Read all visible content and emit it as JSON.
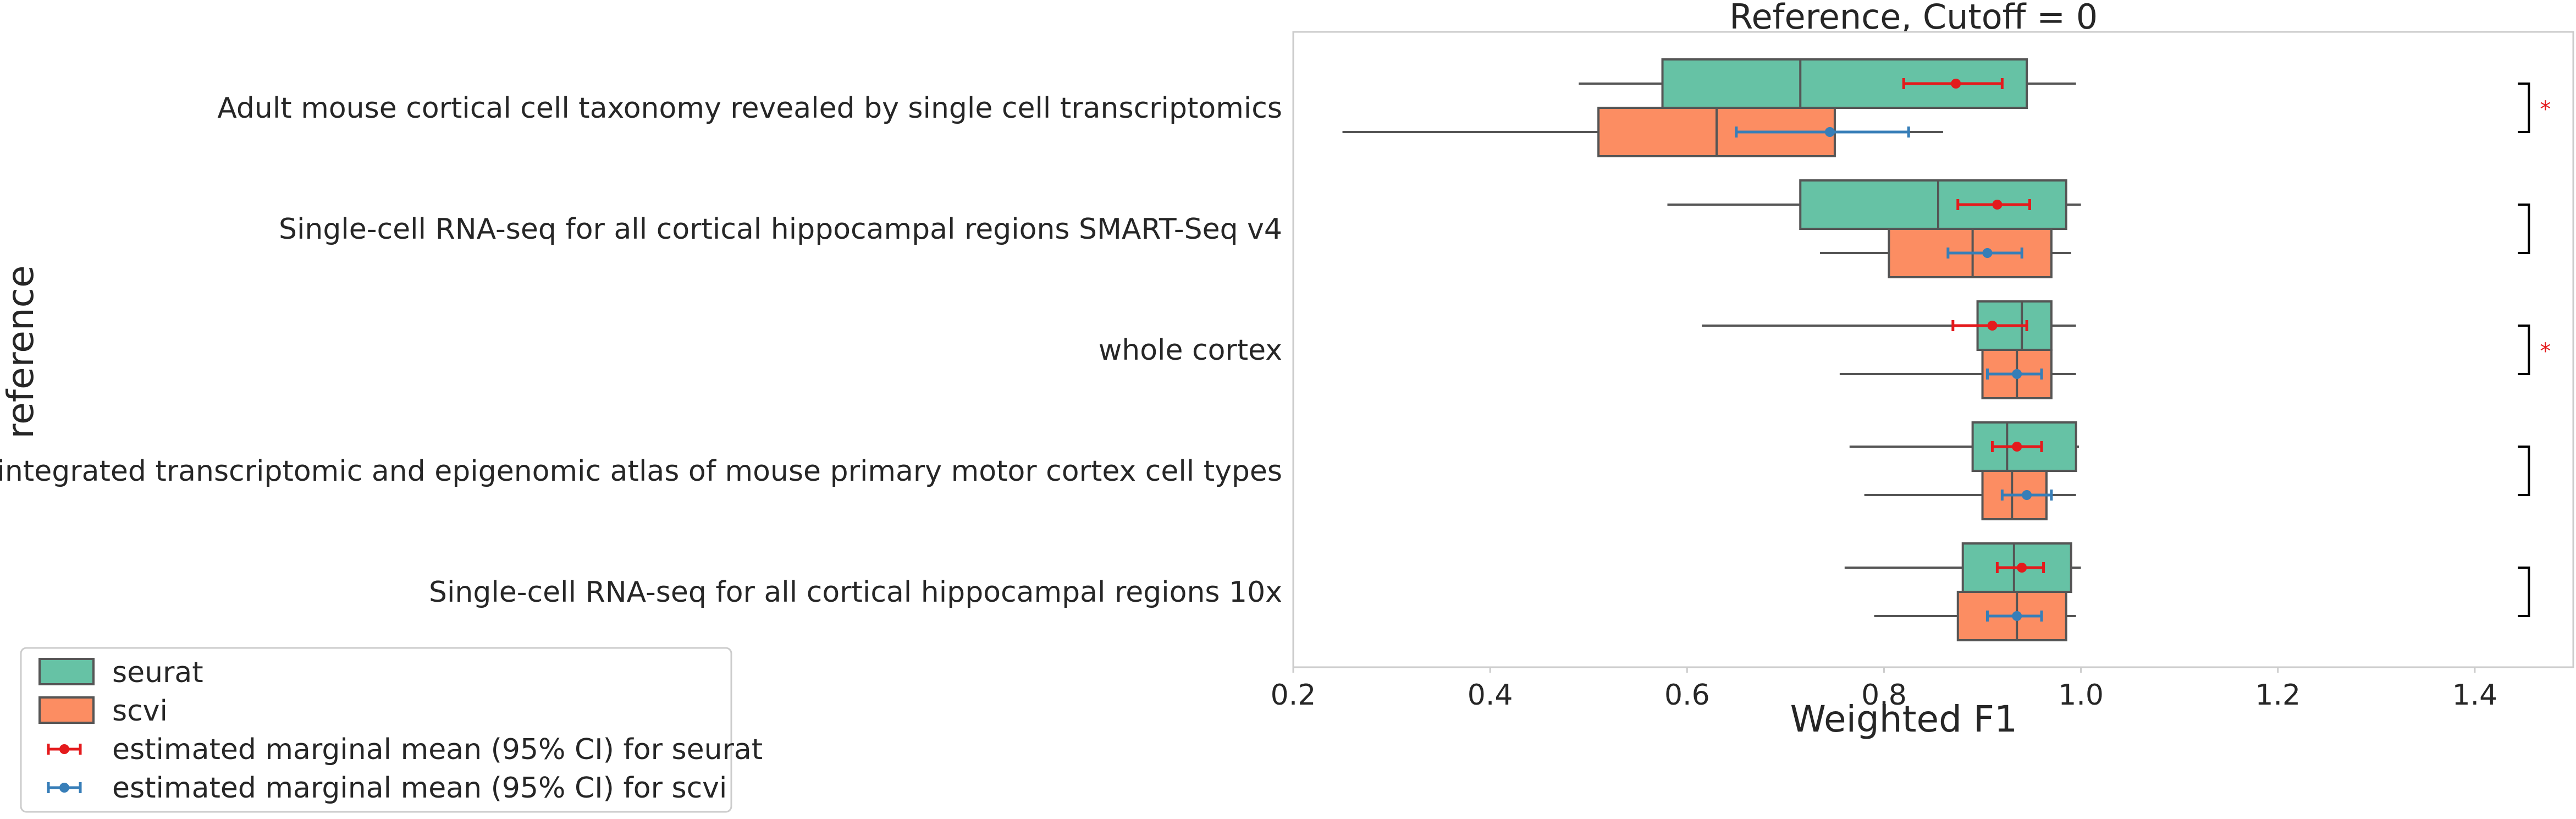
{
  "chart_data": {
    "type": "boxplot",
    "orientation": "horizontal",
    "title": "Reference, Cutoff = 0",
    "xlabel": "Weighted F1",
    "ylabel": "reference",
    "xlim": [
      0.2,
      1.5
    ],
    "x_ticks": [
      0.2,
      0.4,
      0.6,
      0.8,
      1.0,
      1.2,
      1.4
    ],
    "x_tick_labels": [
      "0.2",
      "0.4",
      "0.6",
      "0.8",
      "1.0",
      "1.2",
      "1.4"
    ],
    "grid": false,
    "legend_position": "lower-left outside",
    "categories": [
      "Adult mouse cortical cell taxonomy revealed by single cell transcriptomics",
      "Single-cell RNA-seq for all cortical  hippocampal regions SMART-Seq v4",
      "whole cortex",
      "An integrated transcriptomic and epigenomic atlas of mouse primary motor cortex cell types",
      "Single-cell RNA-seq for all cortical  hippocampal regions 10x"
    ],
    "series": [
      {
        "name": "seurat",
        "color": "#66c2a5",
        "boxes": [
          {
            "whisker_low": 0.49,
            "q1": 0.575,
            "median": 0.715,
            "q3": 0.945,
            "whisker_high": 0.995
          },
          {
            "whisker_low": 0.58,
            "q1": 0.715,
            "median": 0.855,
            "q3": 0.985,
            "whisker_high": 1.0
          },
          {
            "whisker_low": 0.615,
            "q1": 0.895,
            "median": 0.94,
            "q3": 0.97,
            "whisker_high": 0.995
          },
          {
            "whisker_low": 0.765,
            "q1": 0.89,
            "median": 0.925,
            "q3": 0.995,
            "whisker_high": 0.998
          },
          {
            "whisker_low": 0.76,
            "q1": 0.88,
            "median": 0.932,
            "q3": 0.99,
            "whisker_high": 1.0
          }
        ]
      },
      {
        "name": "scvi",
        "color": "#fc8d62",
        "boxes": [
          {
            "whisker_low": 0.25,
            "q1": 0.51,
            "median": 0.63,
            "q3": 0.75,
            "whisker_high": 0.86
          },
          {
            "whisker_low": 0.735,
            "q1": 0.805,
            "median": 0.89,
            "q3": 0.97,
            "whisker_high": 0.99
          },
          {
            "whisker_low": 0.755,
            "q1": 0.9,
            "median": 0.935,
            "q3": 0.97,
            "whisker_high": 0.995
          },
          {
            "whisker_low": 0.78,
            "q1": 0.9,
            "median": 0.93,
            "q3": 0.965,
            "whisker_high": 0.995
          },
          {
            "whisker_low": 0.79,
            "q1": 0.875,
            "median": 0.935,
            "q3": 0.985,
            "whisker_high": 0.995
          }
        ]
      }
    ],
    "estimated_marginal_means": [
      {
        "name": "estimated marginal mean (95% CI) for seurat",
        "color": "#e41a1c",
        "points": [
          {
            "mean": 0.873,
            "ci_low": 0.82,
            "ci_high": 0.92
          },
          {
            "mean": 0.915,
            "ci_low": 0.875,
            "ci_high": 0.948
          },
          {
            "mean": 0.91,
            "ci_low": 0.87,
            "ci_high": 0.945
          },
          {
            "mean": 0.935,
            "ci_low": 0.91,
            "ci_high": 0.96
          },
          {
            "mean": 0.94,
            "ci_low": 0.915,
            "ci_high": 0.962
          }
        ]
      },
      {
        "name": "estimated marginal mean (95% CI) for scvi",
        "color": "#377eb8",
        "points": [
          {
            "mean": 0.745,
            "ci_low": 0.65,
            "ci_high": 0.825
          },
          {
            "mean": 0.905,
            "ci_low": 0.865,
            "ci_high": 0.94
          },
          {
            "mean": 0.935,
            "ci_low": 0.905,
            "ci_high": 0.96
          },
          {
            "mean": 0.945,
            "ci_low": 0.92,
            "ci_high": 0.97
          },
          {
            "mean": 0.935,
            "ci_low": 0.905,
            "ci_high": 0.96
          }
        ]
      }
    ],
    "significance": [
      "*",
      "",
      "*",
      "",
      ""
    ]
  },
  "legend": {
    "entries": [
      {
        "label": "seurat",
        "kind": "patch",
        "color": "#66c2a5"
      },
      {
        "label": "scvi",
        "kind": "patch",
        "color": "#fc8d62"
      },
      {
        "label": "estimated marginal mean (95% CI) for seurat",
        "kind": "errorbar",
        "color": "#e41a1c"
      },
      {
        "label": "estimated marginal mean (95% CI) for scvi",
        "kind": "errorbar",
        "color": "#377eb8"
      }
    ]
  }
}
